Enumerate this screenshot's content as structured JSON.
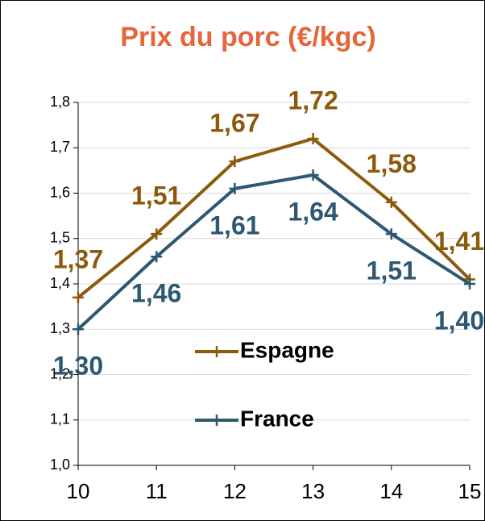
{
  "chart_data": {
    "type": "line",
    "title": "Prix du porc (€/kgc)",
    "x": [
      10,
      11,
      12,
      13,
      14,
      15
    ],
    "xlim": [
      10,
      15
    ],
    "xticks": [
      10,
      11,
      12,
      13,
      14,
      15
    ],
    "ylim": [
      1.0,
      1.8
    ],
    "yticks": [
      {
        "value": 1.0,
        "label": "1,0"
      },
      {
        "value": 1.1,
        "label": "1,1"
      },
      {
        "value": 1.2,
        "label": "1,2"
      },
      {
        "value": 1.3,
        "label": "1,3"
      },
      {
        "value": 1.4,
        "label": "1,4"
      },
      {
        "value": 1.5,
        "label": "1,5"
      },
      {
        "value": 1.6,
        "label": "1,6"
      },
      {
        "value": 1.7,
        "label": "1,7"
      },
      {
        "value": 1.8,
        "label": "1,8"
      }
    ],
    "grid": true,
    "series": [
      {
        "name": "Espagne",
        "color": "#8c5a0c",
        "values": [
          1.37,
          1.51,
          1.67,
          1.72,
          1.58,
          1.41
        ],
        "value_labels": [
          "1,37",
          "1,51",
          "1,67",
          "1,72",
          "1,58",
          "1,41"
        ]
      },
      {
        "name": "France",
        "color": "#2e5872",
        "values": [
          1.3,
          1.46,
          1.61,
          1.64,
          1.51,
          1.4
        ],
        "value_labels": [
          "1,30",
          "1,46",
          "1,61",
          "1,64",
          "1,51",
          "1,40"
        ]
      }
    ]
  }
}
